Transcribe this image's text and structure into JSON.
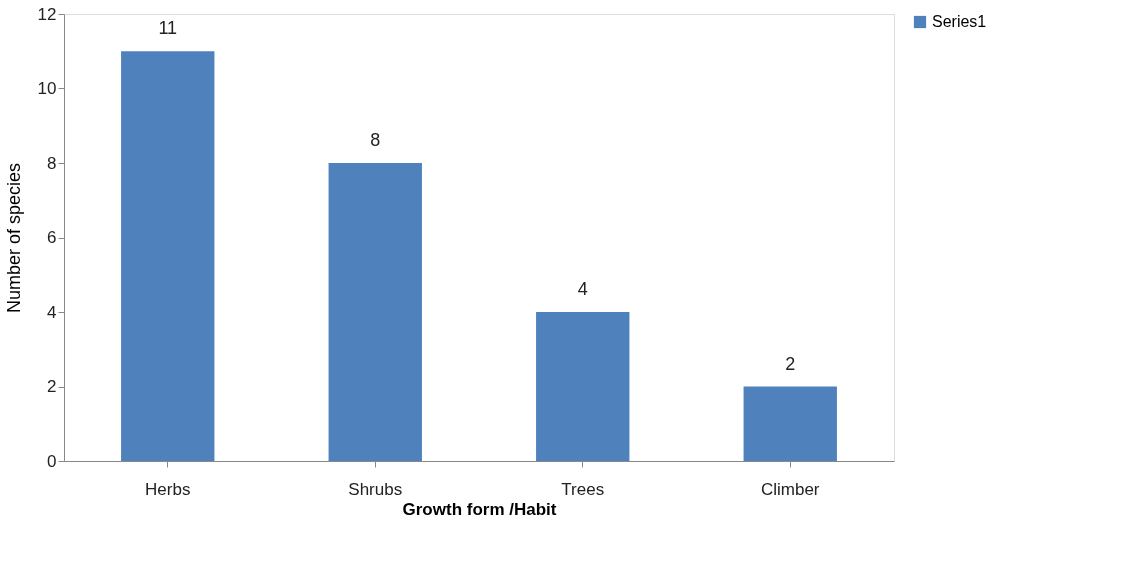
{
  "chart_data": {
    "type": "bar",
    "xlabel": "Growth form /Habit",
    "ylabel": "Number of species",
    "categories": [
      "Herbs",
      "Shrubs",
      "Trees",
      "Climber"
    ],
    "series": [
      {
        "name": "Series1",
        "color": "#4f81bd",
        "values": [
          11,
          8,
          4,
          2
        ]
      }
    ],
    "ylim": [
      0,
      12
    ],
    "yticks": [
      0,
      2,
      4,
      6,
      8,
      10,
      12
    ],
    "grid": false,
    "legend": "right",
    "data_labels": true
  }
}
